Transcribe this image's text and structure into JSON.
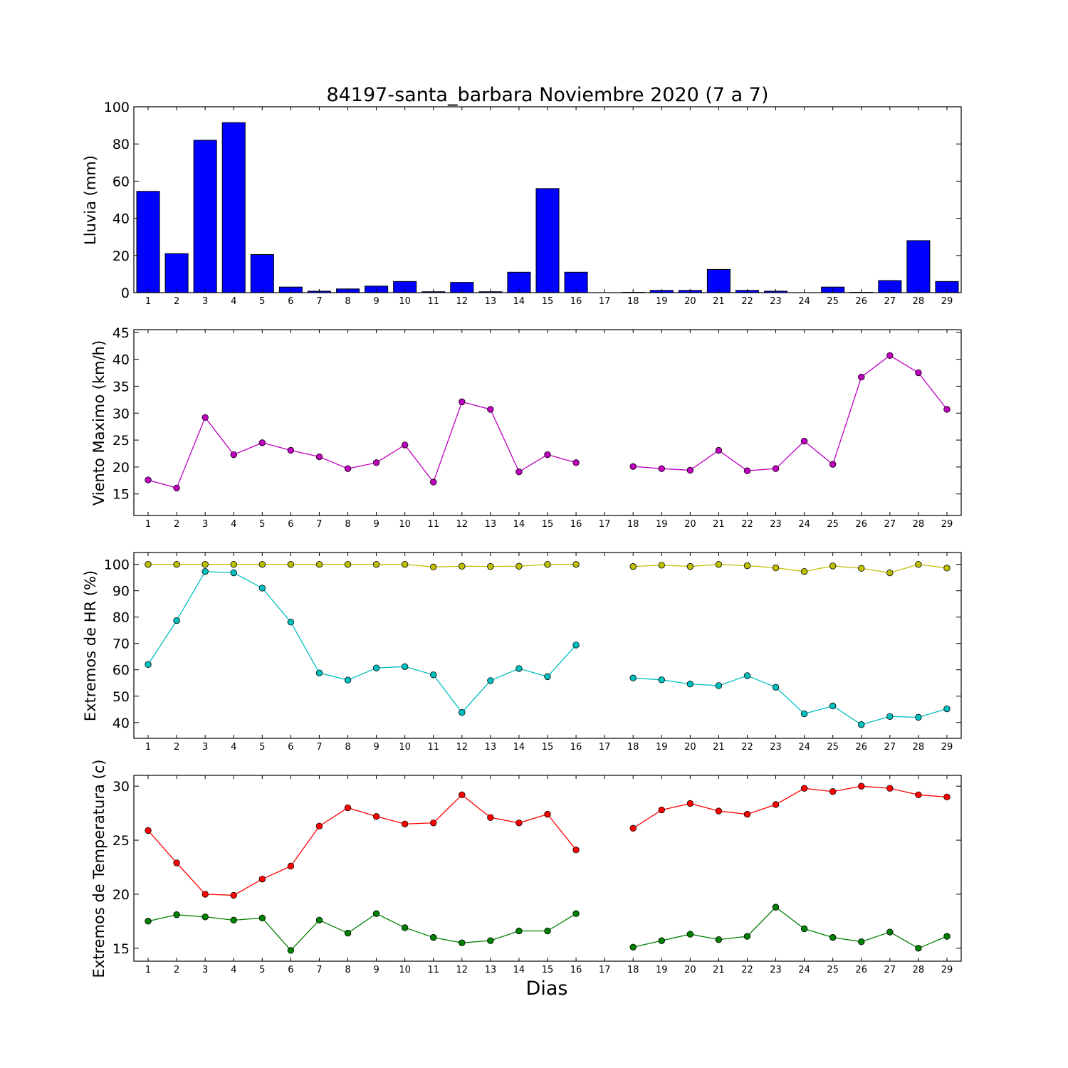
{
  "chart_data": {
    "type": "bar+line",
    "title": "84197-santa_barbara Noviembre 2020  (7 a 7)",
    "xlabel": "Dias",
    "days": [
      1,
      2,
      3,
      4,
      5,
      6,
      7,
      8,
      9,
      10,
      11,
      12,
      13,
      14,
      15,
      16,
      17,
      18,
      19,
      20,
      21,
      22,
      23,
      24,
      25,
      26,
      27,
      28,
      29
    ],
    "panels": [
      {
        "id": "lluvia",
        "type": "bar",
        "ylabel": "Lluvia (mm)",
        "ylim": [
          0,
          100
        ],
        "yticks": [
          0,
          20,
          40,
          60,
          80,
          100
        ],
        "series": [
          {
            "color": "#0000ff",
            "values": [
              54.5,
              21,
              82,
              91.5,
              20.5,
              3,
              0.8,
              2,
              3.5,
              6,
              0.5,
              5.5,
              0.5,
              11,
              56,
              11,
              0,
              0.2,
              1.2,
              1.2,
              12.5,
              1.2,
              0.8,
              0,
              3,
              0.2,
              6.5,
              28,
              6
            ]
          }
        ]
      },
      {
        "id": "viento",
        "type": "line",
        "ylabel": "Viento Maximo (km/h)",
        "ylim": [
          11,
          45.5
        ],
        "yticks": [
          15,
          20,
          25,
          30,
          35,
          40,
          45
        ],
        "series": [
          {
            "color": "#bf00bf",
            "values": [
              17.6,
              16.1,
              29.2,
              22.3,
              24.5,
              23.1,
              21.9,
              19.7,
              20.8,
              24.1,
              17.2,
              32.1,
              30.7,
              19.1,
              22.3,
              20.8,
              null,
              20.1,
              19.7,
              19.4,
              23.1,
              19.3,
              19.7,
              24.8,
              20.5,
              36.7,
              40.7,
              37.5,
              30.7
            ]
          }
        ]
      },
      {
        "id": "hr",
        "type": "line",
        "ylabel": "Extremos de HR (%)",
        "ylim": [
          34,
          104.5
        ],
        "yticks": [
          40,
          50,
          60,
          70,
          80,
          90,
          100
        ],
        "series": [
          {
            "color": "#bfbf00",
            "values": [
              100,
              100,
              100,
              100,
              100,
              100,
              100,
              100,
              100,
              100,
              99,
              99.3,
              99.2,
              99.3,
              100,
              100,
              null,
              99.2,
              99.7,
              99.2,
              100,
              99.5,
              98.7,
              97.3,
              99.4,
              98.5,
              96.8,
              100,
              98.6
            ]
          },
          {
            "color": "#00bfbf",
            "values": [
              62,
              78.7,
              97.3,
              96.8,
              91,
              78.1,
              58.8,
              56.1,
              60.7,
              61.2,
              58.1,
              43.8,
              55.9,
              60.5,
              57.4,
              69.4,
              null,
              56.9,
              56.2,
              54.6,
              54,
              57.8,
              53.4,
              43.3,
              46.3,
              39.2,
              42.3,
              42,
              45.2
            ]
          }
        ]
      },
      {
        "id": "temp",
        "type": "line",
        "ylabel": "Extremos de Temperatura (c)",
        "ylim": [
          13.8,
          31
        ],
        "yticks": [
          15,
          20,
          25,
          30
        ],
        "series": [
          {
            "color": "#ff0000",
            "values": [
              25.9,
              22.9,
              20,
              19.9,
              21.4,
              22.6,
              26.3,
              28,
              27.2,
              26.5,
              26.6,
              29.2,
              27.1,
              26.6,
              27.4,
              24.1,
              null,
              26.1,
              27.8,
              28.4,
              27.7,
              27.4,
              28.3,
              29.8,
              29.5,
              30,
              29.8,
              29.2,
              29
            ]
          },
          {
            "color": "#008000",
            "values": [
              17.5,
              18.1,
              17.9,
              17.6,
              17.8,
              14.8,
              17.6,
              16.4,
              18.2,
              16.9,
              16,
              15.5,
              15.7,
              16.6,
              16.6,
              18.2,
              null,
              15.1,
              15.7,
              16.3,
              15.8,
              16.1,
              18.8,
              16.8,
              16,
              15.6,
              16.5,
              15,
              16.1
            ]
          }
        ]
      }
    ]
  }
}
